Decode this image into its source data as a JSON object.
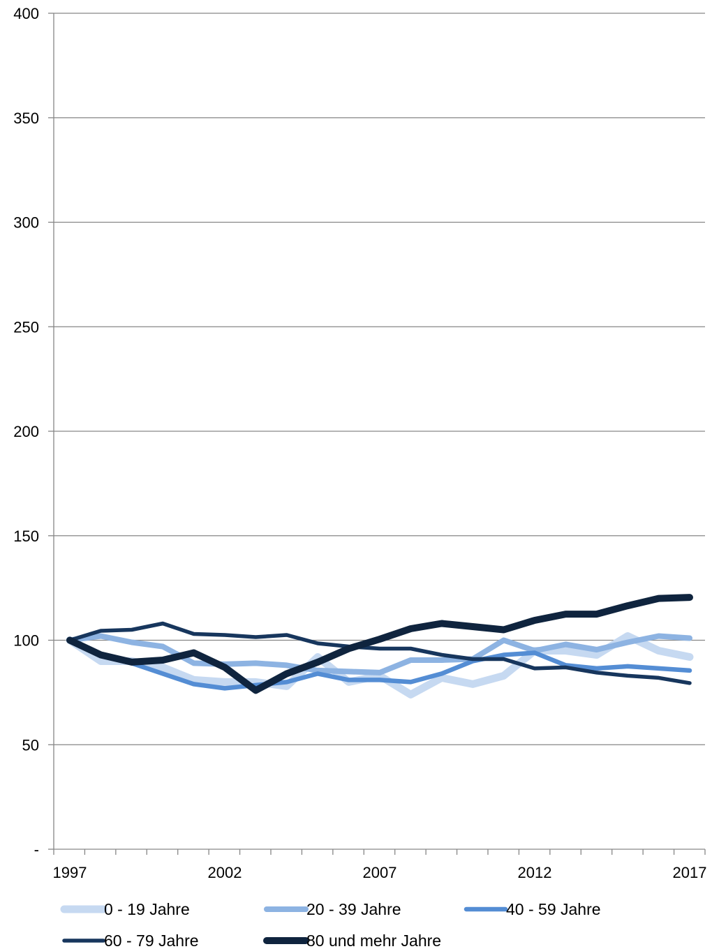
{
  "chart_data": {
    "type": "line",
    "x": [
      1997,
      1998,
      1999,
      2000,
      2001,
      2002,
      2003,
      2004,
      2005,
      2006,
      2007,
      2008,
      2009,
      2010,
      2011,
      2012,
      2013,
      2014,
      2015,
      2016,
      2017
    ],
    "x_tick_labels": [
      "1997",
      "2002",
      "2007",
      "2012",
      "2017"
    ],
    "y_tick_labels": [
      "-",
      "50",
      "100",
      "150",
      "200",
      "250",
      "300",
      "350",
      "400"
    ],
    "ylim": [
      0,
      400
    ],
    "grid": true,
    "legend_position": "bottom",
    "series": [
      {
        "name": "0 - 19 Jahre",
        "color": "#c6d9f1",
        "values": [
          100,
          90,
          90,
          87,
          81,
          80,
          80,
          78,
          92,
          80,
          83,
          74,
          82,
          79,
          83,
          95,
          95,
          93,
          102,
          95,
          92
        ]
      },
      {
        "name": "20 - 39 Jahre",
        "color": "#8db3e2",
        "values": [
          100,
          102,
          99,
          97,
          89,
          88.5,
          89,
          88,
          85.5,
          85,
          84.5,
          90.5,
          90.5,
          91,
          100,
          95,
          98,
          95.5,
          99,
          102,
          101
        ]
      },
      {
        "name": "40 - 59 Jahre",
        "color": "#548dd4",
        "values": [
          100,
          93,
          89,
          84,
          79,
          77,
          78.5,
          80,
          84,
          81,
          81,
          80,
          84,
          90,
          93,
          94,
          88,
          86.5,
          87.5,
          86.5,
          85.5
        ]
      },
      {
        "name": "60 - 79 Jahre",
        "color": "#17365d",
        "values": [
          100,
          104.5,
          105,
          108,
          103,
          102.5,
          101.5,
          102.5,
          98.5,
          97,
          96,
          96,
          93,
          91,
          91,
          86.5,
          87,
          84.5,
          83,
          82,
          79.5
        ]
      },
      {
        "name": "80 und mehr Jahre",
        "color": "#0f243e",
        "values": [
          100,
          93,
          89.5,
          90.5,
          94,
          87,
          76,
          84,
          89.5,
          96,
          100.5,
          105.5,
          108,
          106.5,
          105,
          109.5,
          112.5,
          112.5,
          116.5,
          120,
          120.5
        ]
      }
    ]
  }
}
